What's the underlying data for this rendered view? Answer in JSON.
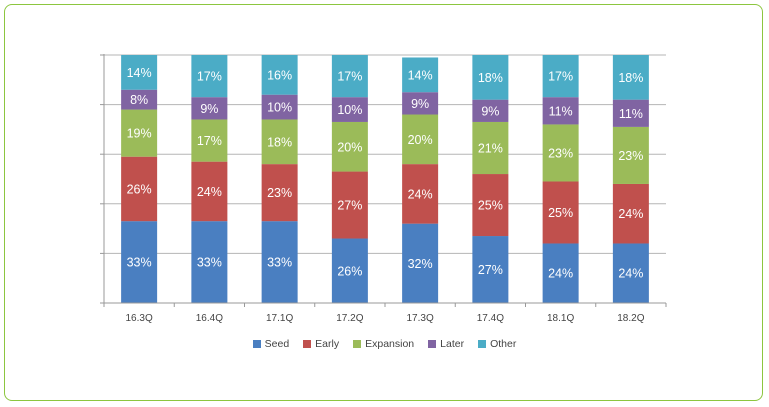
{
  "chart_data": {
    "type": "bar",
    "stacked": "percent",
    "categories": [
      "16.3Q",
      "16.4Q",
      "17.1Q",
      "17.2Q",
      "17.3Q",
      "17.4Q",
      "18.1Q",
      "18.2Q"
    ],
    "series": [
      {
        "name": "Seed",
        "color": "#4a7fc1",
        "values": [
          33,
          33,
          33,
          26,
          32,
          27,
          24,
          24
        ],
        "labels": [
          "33%",
          "33%",
          "33%",
          "26%",
          "32%",
          "27%",
          "24%",
          "24%"
        ]
      },
      {
        "name": "Early",
        "color": "#c0504d",
        "values": [
          26,
          24,
          23,
          27,
          24,
          25,
          25,
          24
        ],
        "labels": [
          "26%",
          "24%",
          "23%",
          "27%",
          "24%",
          "25%",
          "25%",
          "24%"
        ]
      },
      {
        "name": "Expansion",
        "color": "#9bbb59",
        "values": [
          19,
          17,
          18,
          20,
          20,
          21,
          23,
          23
        ],
        "labels": [
          "19%",
          "17%",
          "18%",
          "20%",
          "20%",
          "21%",
          "23%",
          "23%"
        ]
      },
      {
        "name": "Later",
        "color": "#8064a2",
        "values": [
          8,
          9,
          10,
          10,
          9,
          9,
          11,
          11
        ],
        "labels": [
          "8%",
          "9%",
          "10%",
          "10%",
          "9%",
          "9%",
          "11%",
          "11%"
        ]
      },
      {
        "name": "Other",
        "color": "#4bacc6",
        "values": [
          14,
          17,
          16,
          17,
          14,
          18,
          17,
          18
        ],
        "labels": [
          "14%",
          "17%",
          "16%",
          "17%",
          "14%",
          "18%",
          "17%",
          "18%"
        ]
      }
    ],
    "ylim": [
      0,
      100
    ],
    "grid": true,
    "legend_position": "bottom"
  }
}
